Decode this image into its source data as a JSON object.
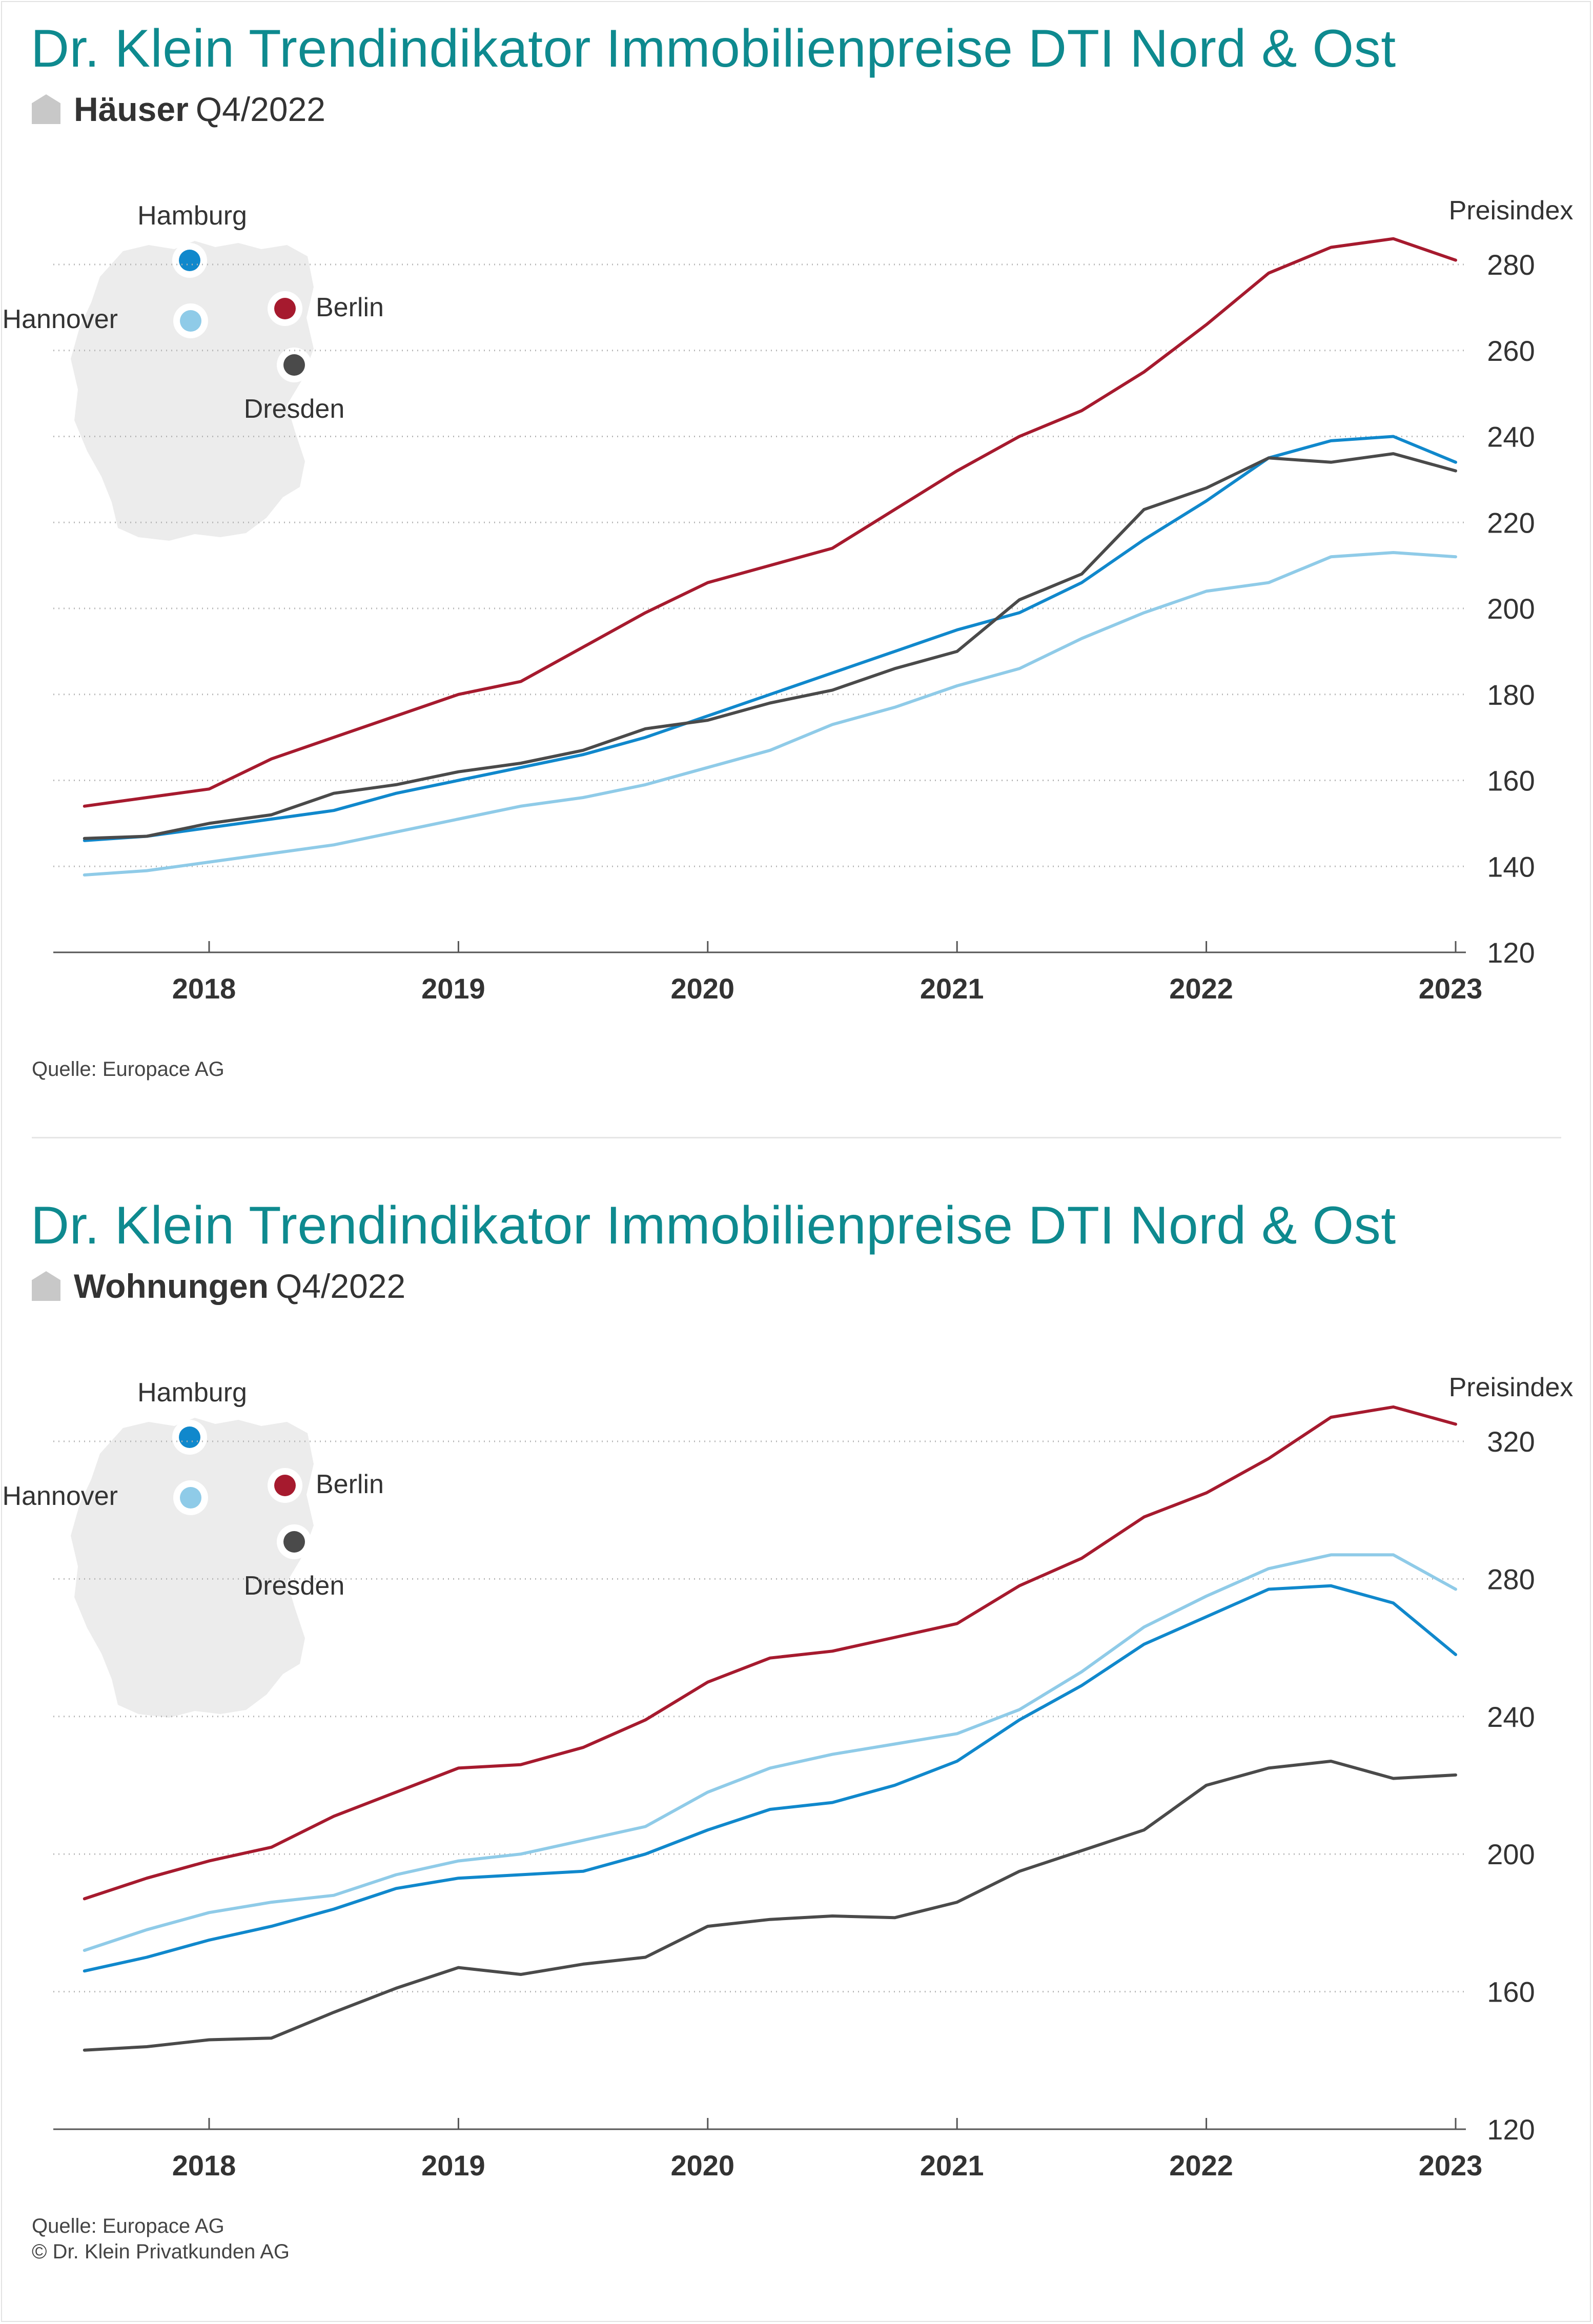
{
  "colors": {
    "title": "#0e8a8f",
    "Hamburg": "#1088cc",
    "Hannover": "#8fcbe8",
    "Berlin": "#a61a2e",
    "Dresden": "#4a4a4a",
    "grid": "#b5b5b5",
    "axis": "#555555",
    "map": "#ececec"
  },
  "icons": [
    "house-icon",
    "germany-map-icon"
  ],
  "footer": {
    "source": "Quelle: Europace AG",
    "copyright": "© Dr. Klein Privatkunden AG"
  },
  "charts": [
    {
      "id": "houses",
      "title": "Dr. Klein Trendindikator Immobilienpreise DTI Nord & Ost",
      "subtitle_label": "Häuser",
      "subtitle_period": "Q4/2022",
      "source": "Quelle: Europace AG",
      "chart_data": {
        "type": "line",
        "ylabel": "Preisindex",
        "ylim": [
          120,
          280
        ],
        "yticks": [
          120,
          140,
          160,
          180,
          200,
          220,
          240,
          260,
          280
        ],
        "xlim": [
          2017.375,
          2023.0
        ],
        "xticks": [
          2018,
          2019,
          2020,
          2021,
          2022,
          2023
        ],
        "grid": true,
        "legend": "map-top-left",
        "x": [
          2017.5,
          2017.75,
          2018.0,
          2018.25,
          2018.5,
          2018.75,
          2019.0,
          2019.25,
          2019.5,
          2019.75,
          2020.0,
          2020.25,
          2020.5,
          2020.75,
          2021.0,
          2021.25,
          2021.5,
          2021.75,
          2022.0,
          2022.25,
          2022.5,
          2022.75,
          2023.0
        ],
        "series": [
          {
            "name": "Berlin",
            "values": [
              154,
              156,
              158,
              165,
              170,
              175,
              180,
              183,
              191,
              199,
              206,
              210,
              214,
              223,
              232,
              240,
              246,
              255,
              266,
              278,
              284,
              286,
              281
            ]
          },
          {
            "name": "Hamburg",
            "values": [
              146,
              147,
              149,
              151,
              153,
              157,
              160,
              163,
              166,
              170,
              175,
              180,
              185,
              190,
              195,
              199,
              206,
              216,
              225,
              235,
              239,
              240,
              234
            ]
          },
          {
            "name": "Hannover",
            "values": [
              138,
              139,
              141,
              143,
              145,
              148,
              151,
              154,
              156,
              159,
              163,
              167,
              173,
              177,
              182,
              186,
              193,
              199,
              204,
              206,
              212,
              213,
              212
            ]
          },
          {
            "name": "Dresden",
            "values": [
              146.5,
              147,
              150,
              152,
              157,
              159,
              162,
              164,
              167,
              172,
              174,
              178,
              181,
              186,
              190,
              202,
              208,
              223,
              228,
              235,
              234,
              236,
              232
            ]
          }
        ]
      },
      "legend_map": [
        {
          "name": "Hamburg",
          "label": "Hamburg"
        },
        {
          "name": "Hannover",
          "label": "Hannover"
        },
        {
          "name": "Berlin",
          "label": "Berlin"
        },
        {
          "name": "Dresden",
          "label": "Dresden"
        }
      ]
    },
    {
      "id": "flats",
      "title": "Dr. Klein Trendindikator Immobilienpreise DTI Nord & Ost",
      "subtitle_label": "Wohnungen",
      "subtitle_period": "Q4/2022",
      "source": "Quelle: Europace AG",
      "copyright": "© Dr. Klein Privatkunden AG",
      "chart_data": {
        "type": "line",
        "ylabel": "Preisindex",
        "ylim": [
          120,
          320
        ],
        "yticks": [
          120,
          160,
          200,
          240,
          280,
          320
        ],
        "xlim": [
          2017.375,
          2023.0
        ],
        "xticks": [
          2018,
          2019,
          2020,
          2021,
          2022,
          2023
        ],
        "grid": true,
        "legend": "map-top-left",
        "x": [
          2017.5,
          2017.75,
          2018.0,
          2018.25,
          2018.5,
          2018.75,
          2019.0,
          2019.25,
          2019.5,
          2019.75,
          2020.0,
          2020.25,
          2020.5,
          2020.75,
          2021.0,
          2021.25,
          2021.5,
          2021.75,
          2022.0,
          2022.25,
          2022.5,
          2022.75,
          2023.0
        ],
        "series": [
          {
            "name": "Berlin",
            "values": [
              187,
              193,
              198,
              202,
              211,
              218,
              225,
              226,
              231,
              239,
              250,
              257,
              259,
              263,
              267,
              278,
              286,
              298,
              305,
              315,
              327,
              330,
              325
            ]
          },
          {
            "name": "Hannover",
            "values": [
              172,
              178,
              183,
              186,
              188,
              194,
              198,
              200,
              204,
              208,
              218,
              225,
              229,
              232,
              235,
              242,
              253,
              266,
              275,
              283,
              287,
              287,
              277
            ]
          },
          {
            "name": "Hamburg",
            "values": [
              166,
              170,
              175,
              179,
              184,
              190,
              193,
              194,
              195,
              200,
              207,
              213,
              215,
              220,
              227,
              239,
              249,
              261,
              269,
              277,
              278,
              273,
              258
            ]
          },
          {
            "name": "Dresden",
            "values": [
              143,
              144,
              146,
              146.5,
              154,
              161,
              167,
              165,
              168,
              170,
              179,
              181,
              182,
              181.5,
              186,
              195,
              201,
              207,
              220,
              225,
              227,
              222,
              223
            ]
          }
        ]
      },
      "legend_map": [
        {
          "name": "Hamburg",
          "label": "Hamburg"
        },
        {
          "name": "Hannover",
          "label": "Hannover"
        },
        {
          "name": "Berlin",
          "label": "Berlin"
        },
        {
          "name": "Dresden",
          "label": "Dresden"
        }
      ]
    }
  ]
}
